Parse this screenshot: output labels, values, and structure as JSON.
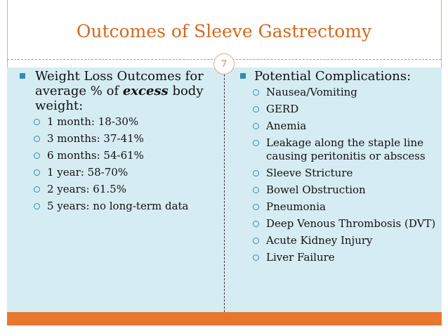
{
  "title": "Outcomes of Sleeve Gastrectomy",
  "slide_number": "7",
  "left": {
    "heading_pre": "Weight Loss Outcomes for average % of ",
    "heading_emph": "excess",
    "heading_post": " body weight:",
    "items": [
      "1 month: 18-30%",
      "3 months: 37-41%",
      "6 months: 54-61%",
      "1 year: 58-70%",
      "2 years: 61.5%",
      "5 years: no long-term data"
    ]
  },
  "right": {
    "heading": "Potential Complications:",
    "items": [
      "Nausea/Vomiting",
      "GERD",
      "Anemia",
      "Leakage along the staple line causing peritonitis or abscess",
      "Sleeve Stricture",
      "Bowel Obstruction",
      "Pneumonia",
      "Deep Venous Thrombosis (DVT)",
      "Acute Kidney Injury",
      "Liver Failure"
    ]
  },
  "colors": {
    "title": "#d2691e",
    "content_bg": "#d6ecf3",
    "footer": "#e8772e",
    "bullet": "#2f8fb0"
  }
}
